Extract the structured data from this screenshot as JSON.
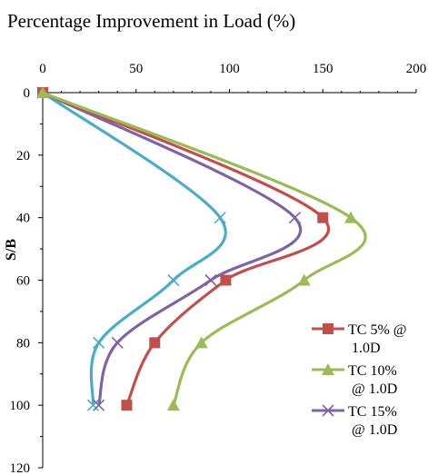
{
  "chart_data": {
    "type": "line",
    "title": "Percentage Improvement in Load (%)",
    "xlabel": "",
    "ylabel": "S/B",
    "xlim": [
      0,
      200
    ],
    "ylim": [
      0,
      120
    ],
    "y_inverted": true,
    "x_axis_position": "top",
    "x_ticks": [
      0,
      50,
      100,
      150,
      200
    ],
    "y_ticks": [
      0,
      20,
      40,
      60,
      80,
      100,
      120
    ],
    "grid": false,
    "legend_position": "bottom-right",
    "series": [
      {
        "name": "TC 5% @ 1.0D",
        "legend_lines": [
          "TC 5% @",
          "1.0D"
        ],
        "color": "#c0504d",
        "marker": "square",
        "points": [
          [
            0,
            0
          ],
          [
            150,
            40
          ],
          [
            98,
            60
          ],
          [
            60,
            80
          ],
          [
            45,
            100
          ]
        ]
      },
      {
        "name": "TC 10% @ 1.0D",
        "legend_lines": [
          "TC 10%",
          "@ 1.0D"
        ],
        "color": "#9bbb59",
        "marker": "triangle",
        "points": [
          [
            0,
            0
          ],
          [
            165,
            40
          ],
          [
            140,
            60
          ],
          [
            85,
            80
          ],
          [
            70,
            100
          ]
        ]
      },
      {
        "name": "TC 15% @ 1.0D",
        "legend_lines": [
          "TC 15%",
          "@ 1.0D"
        ],
        "color": "#8064a2",
        "marker": "x",
        "points": [
          [
            0,
            0
          ],
          [
            135,
            40
          ],
          [
            90,
            60
          ],
          [
            40,
            80
          ],
          [
            30,
            100
          ]
        ]
      },
      {
        "name": "",
        "legend_lines": [],
        "color": "#4bacc6",
        "marker": "x",
        "points": [
          [
            0,
            0
          ],
          [
            95,
            40
          ],
          [
            70,
            60
          ],
          [
            30,
            80
          ],
          [
            27,
            100
          ]
        ]
      }
    ]
  }
}
